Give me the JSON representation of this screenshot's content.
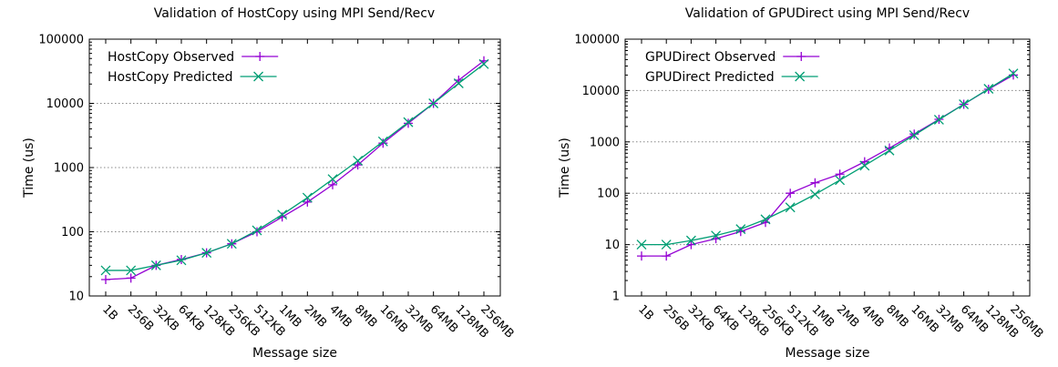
{
  "chart_data": [
    {
      "type": "line",
      "title": "Validation of HostCopy using MPI Send/Recv",
      "xlabel": "Message size",
      "ylabel": "Time (us)",
      "yscale": "log",
      "ylim": [
        10,
        100000
      ],
      "y_ticks": [
        "10",
        "100",
        "1000",
        "10000",
        "100000"
      ],
      "categories": [
        "1B",
        "256B",
        "32KB",
        "64KB",
        "128KB",
        "256KB",
        "512KB",
        "1MB",
        "2MB",
        "4MB",
        "8MB",
        "16MB",
        "32MB",
        "64MB",
        "128MB",
        "256MB"
      ],
      "grid": true,
      "legend_position": "top-left",
      "series": [
        {
          "name": "HostCopy Observed",
          "color": "#9400d3",
          "marker": "plus",
          "values": [
            18,
            19,
            30,
            37,
            47,
            65,
            100,
            170,
            290,
            540,
            1100,
            2400,
            4900,
            10000,
            23000,
            46000
          ]
        },
        {
          "name": "HostCopy Predicted",
          "color": "#009e73",
          "marker": "cross",
          "values": [
            25,
            25,
            30,
            36,
            47,
            65,
            105,
            185,
            340,
            660,
            1280,
            2550,
            5100,
            10000,
            20500,
            41000
          ]
        }
      ]
    },
    {
      "type": "line",
      "title": "Validation of GPUDirect using MPI Send/Recv",
      "xlabel": "Message size",
      "ylabel": "Time (us)",
      "yscale": "log",
      "ylim": [
        1,
        100000
      ],
      "y_ticks": [
        "1",
        "10",
        "100",
        "1000",
        "10000",
        "100000"
      ],
      "categories": [
        "1B",
        "256B",
        "32KB",
        "64KB",
        "128KB",
        "256KB",
        "512KB",
        "1MB",
        "2MB",
        "4MB",
        "8MB",
        "16MB",
        "32MB",
        "64MB",
        "128MB",
        "256MB"
      ],
      "grid": true,
      "legend_position": "top-left",
      "series": [
        {
          "name": "GPUDirect Observed",
          "color": "#9400d3",
          "marker": "plus",
          "values": [
            6,
            6,
            10,
            13,
            18,
            27,
            100,
            160,
            235,
            410,
            760,
            1420,
            2750,
            5400,
            10600,
            20000
          ]
        },
        {
          "name": "GPUDirect Predicted",
          "color": "#009e73",
          "marker": "cross",
          "values": [
            10,
            10,
            12,
            15,
            20,
            31,
            53,
            95,
            180,
            345,
            680,
            1350,
            2700,
            5400,
            10800,
            21500
          ]
        }
      ]
    }
  ]
}
